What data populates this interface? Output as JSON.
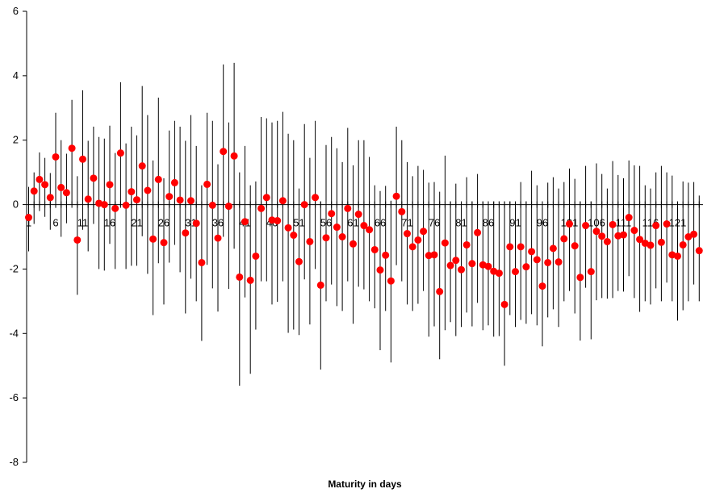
{
  "chart_data": {
    "type": "scatter",
    "title": "",
    "xlabel": "Maturity in days",
    "ylabel": "",
    "xlim": [
      0.5,
      125
    ],
    "ylim": [
      -8,
      6
    ],
    "y_ticks": [
      6,
      4,
      2,
      0,
      -2,
      -4,
      -6,
      -8
    ],
    "x_tick_labels": [
      1,
      6,
      11,
      16,
      21,
      26,
      31,
      36,
      41,
      46,
      51,
      56,
      61,
      66,
      71,
      76,
      81,
      86,
      91,
      96,
      101,
      106,
      111,
      116,
      121
    ],
    "grid": false,
    "marker_color": "#ff0000",
    "error_bar_color": "#000000",
    "series": [
      {
        "x": [
          1,
          2,
          3,
          4,
          5,
          6,
          7,
          8,
          9,
          10,
          11,
          12,
          13,
          14,
          15,
          16,
          17,
          18,
          19,
          20,
          21,
          22,
          23,
          24,
          25,
          26,
          27,
          28,
          29,
          30,
          31,
          32,
          33,
          34,
          35,
          36,
          37,
          38,
          39,
          40,
          41,
          42,
          43,
          44,
          45,
          46,
          47,
          48,
          49,
          50,
          51,
          52,
          53,
          54,
          55,
          56,
          57,
          58,
          59,
          60,
          61,
          62,
          63,
          64,
          65,
          66,
          67,
          68,
          69,
          70,
          71,
          72,
          73,
          74,
          75,
          76,
          77,
          78,
          79,
          80,
          81,
          82,
          83,
          84,
          85,
          86,
          87,
          88,
          89,
          90,
          91,
          92,
          93,
          94,
          95,
          96,
          97,
          98,
          99,
          100,
          101,
          102,
          103,
          104,
          105,
          106,
          107,
          108,
          109,
          110,
          111,
          112,
          113,
          114,
          115,
          116,
          117,
          118,
          119,
          120,
          121,
          122,
          123,
          124,
          125
        ],
        "y": [
          -0.4,
          0.42,
          0.78,
          0.62,
          0.22,
          1.48,
          0.53,
          0.37,
          1.75,
          -1.1,
          1.41,
          0.17,
          0.82,
          0.04,
          0.0,
          0.62,
          -0.12,
          1.6,
          -0.02,
          0.4,
          0.15,
          1.2,
          0.44,
          -1.07,
          0.78,
          -1.18,
          0.25,
          0.68,
          0.14,
          -0.88,
          0.12,
          -0.58,
          -1.8,
          0.63,
          -0.02,
          -1.04,
          1.65,
          -0.05,
          1.51,
          -2.25,
          -0.53,
          -2.35,
          -1.6,
          -0.12,
          0.22,
          -0.48,
          -0.5,
          0.12,
          -0.72,
          -0.95,
          -1.77,
          0.0,
          -1.15,
          0.22,
          -2.5,
          -1.03,
          -0.28,
          -0.7,
          -1.0,
          -0.12,
          -1.22,
          -0.3,
          -0.65,
          -0.78,
          -1.4,
          -2.03,
          -1.57,
          -2.37,
          0.26,
          -0.22,
          -0.9,
          -1.31,
          -1.1,
          -0.83,
          -1.58,
          -1.56,
          -2.7,
          -1.19,
          -1.89,
          -1.73,
          -2.02,
          -1.25,
          -1.83,
          -0.87,
          -1.87,
          -1.92,
          -2.07,
          -2.13,
          -3.1,
          -1.31,
          -2.08,
          -1.31,
          -1.93,
          -1.46,
          -1.71,
          -2.53,
          -1.8,
          -1.36,
          -1.78,
          -1.06,
          -0.6,
          -1.28,
          -2.26,
          -0.65,
          -2.08,
          -0.83,
          -0.98,
          -1.15,
          -0.62,
          -0.97,
          -0.94,
          -0.4,
          -0.8,
          -1.08,
          -1.2,
          -1.26,
          -0.65,
          -1.17,
          -0.6,
          -1.56,
          -1.6,
          -1.25,
          -1.0,
          -0.92,
          -1.43
        ],
        "err_low": [
          -1.45,
          -0.6,
          -0.2,
          -0.38,
          -0.78,
          0.0,
          -1.0,
          -0.58,
          0.0,
          -2.8,
          -0.78,
          -1.45,
          -0.6,
          -2.0,
          -2.05,
          -1.22,
          -2.0,
          -0.05,
          -2.0,
          -1.9,
          -1.9,
          -0.98,
          -2.15,
          -3.43,
          -1.82,
          -3.1,
          -1.8,
          -1.25,
          -2.1,
          -3.38,
          -2.3,
          -3.0,
          -4.23,
          -1.87,
          -2.6,
          -3.32,
          -1.0,
          -2.62,
          -1.37,
          -5.62,
          -2.88,
          -5.25,
          -3.88,
          -2.38,
          -2.38,
          -3.1,
          -3.02,
          -2.38,
          -3.98,
          -3.88,
          -4.05,
          -2.32,
          -3.72,
          -2.0,
          -5.12,
          -3.0,
          -2.48,
          -3.15,
          -3.3,
          -2.38,
          -3.7,
          -2.55,
          -2.63,
          -3.0,
          -3.22,
          -4.52,
          -3.3,
          -4.9,
          -1.88,
          -2.38,
          -3.1,
          -3.3,
          -3.08,
          -2.68,
          -4.1,
          -3.78,
          -4.8,
          -3.9,
          -3.65,
          -4.08,
          -3.8,
          -3.35,
          -3.78,
          -3.05,
          -3.9,
          -3.75,
          -4.1,
          -4.08,
          -5.0,
          -3.43,
          -3.8,
          -3.58,
          -3.7,
          -3.4,
          -3.75,
          -4.4,
          -3.5,
          -3.25,
          -3.8,
          -3.0,
          -2.68,
          -3.38,
          -4.22,
          -2.58,
          -4.18,
          -2.97,
          -2.9,
          -2.92,
          -2.9,
          -2.68,
          -2.7,
          -2.22,
          -2.9,
          -3.33,
          -3.0,
          -3.1,
          -2.6,
          -3.0,
          -2.42,
          -3.0,
          -3.6,
          -3.28,
          -3.0,
          -2.48,
          -3.0
        ],
        "err_high": [
          0.55,
          1.0,
          1.62,
          1.45,
          0.98,
          2.85,
          2.0,
          1.58,
          3.25,
          0.88,
          3.55,
          1.98,
          2.42,
          2.1,
          2.05,
          2.45,
          1.6,
          3.8,
          1.9,
          2.42,
          2.15,
          3.68,
          2.78,
          1.37,
          3.32,
          0.82,
          2.3,
          2.6,
          2.42,
          1.98,
          2.78,
          1.82,
          0.6,
          2.85,
          2.6,
          1.25,
          4.35,
          2.55,
          4.4,
          1.0,
          1.82,
          0.6,
          0.72,
          2.72,
          2.68,
          2.55,
          2.6,
          2.88,
          2.2,
          2.0,
          0.5,
          2.5,
          1.45,
          2.6,
          0.1,
          1.85,
          2.1,
          1.75,
          1.32,
          2.38,
          1.22,
          2.0,
          2.0,
          1.48,
          0.6,
          0.42,
          0.58,
          0.12,
          2.42,
          2.0,
          1.32,
          0.88,
          1.2,
          1.08,
          0.68,
          0.7,
          0.4,
          1.52,
          0.1,
          0.65,
          0.1,
          0.85,
          0.1,
          0.95,
          0.1,
          0.1,
          0.1,
          0.1,
          0.1,
          0.1,
          0.1,
          0.7,
          0.1,
          1.05,
          0.6,
          0.1,
          0.68,
          0.85,
          0.5,
          0.7,
          1.12,
          0.8,
          0.1,
          1.2,
          0.1,
          1.28,
          0.95,
          0.5,
          1.35,
          0.92,
          0.82,
          1.37,
          1.22,
          1.2,
          0.6,
          0.5,
          1.0,
          1.2,
          1.0,
          0.9,
          0.1,
          0.72,
          0.68,
          0.7,
          0.28
        ]
      }
    ]
  }
}
